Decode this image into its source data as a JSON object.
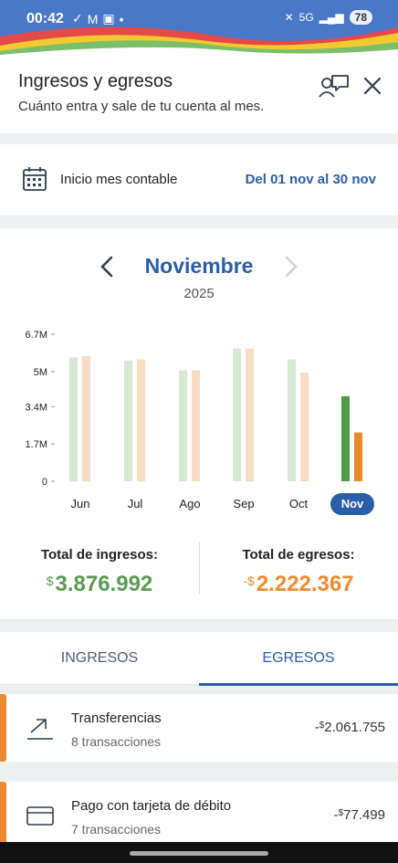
{
  "status_bar": {
    "time": "00:42",
    "battery": "78",
    "network": "5G"
  },
  "header": {
    "title": "Ingresos y egresos",
    "subtitle": "Cuánto entra y sale de tu cuenta al mes."
  },
  "period": {
    "label": "Inicio mes contable",
    "range": "Del 01 nov al 30 nov"
  },
  "chart_nav": {
    "month": "Noviembre",
    "year": "2025"
  },
  "colors": {
    "income_faded": "#d7e9d5",
    "expense_faded": "#f8dcc2",
    "income": "#4d9a47",
    "expense": "#ee8a2c",
    "accent_blue": "#2a5ea8"
  },
  "chart_data": {
    "type": "bar",
    "categories": [
      "Jun",
      "Jul",
      "Ago",
      "Sep",
      "Oct",
      "Nov"
    ],
    "selected": "Nov",
    "series": [
      {
        "name": "Ingresos",
        "values": [
          5650000,
          5500000,
          5050000,
          6050000,
          5550000,
          3876992
        ]
      },
      {
        "name": "Egresos",
        "values": [
          5700000,
          5550000,
          5050000,
          6050000,
          4950000,
          2222367
        ]
      }
    ],
    "yticks": [
      "6.7M",
      "5M",
      "3.4M",
      "1.7M",
      "0"
    ],
    "ytick_values": [
      6700000,
      5000000,
      3400000,
      1700000,
      0
    ],
    "ylim": [
      0,
      6700000
    ]
  },
  "totals": {
    "income_label": "Total de ingresos:",
    "income_currency": "$",
    "income_value": "3.876.992",
    "expense_label": "Total de egresos:",
    "expense_currency": "-$",
    "expense_value": "2.222.367"
  },
  "tabs": {
    "income": "INGRESOS",
    "expense": "EGRESOS"
  },
  "transactions": [
    {
      "name": "Transferencias",
      "count": "8 transacciones",
      "sign": "-",
      "currency": "$",
      "amount": "2.061.755"
    },
    {
      "name": "Pago con tarjeta de débito",
      "count": "7 transacciones",
      "sign": "-",
      "currency": "$",
      "amount": "77.499"
    }
  ]
}
